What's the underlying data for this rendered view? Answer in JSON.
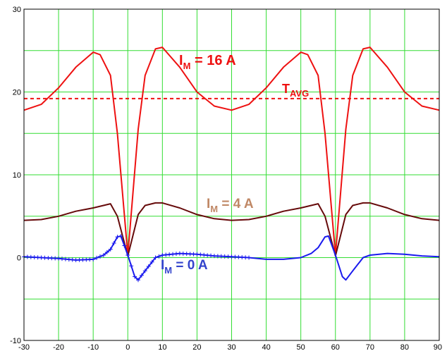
{
  "chart_data": {
    "type": "line",
    "title": "",
    "xlabel": "",
    "ylabel": "",
    "xlim": [
      -30,
      90
    ],
    "ylim": [
      -10,
      30
    ],
    "xticks": [
      "-30",
      "-20",
      "-10",
      "0",
      "10",
      "20",
      "30",
      "40",
      "50",
      "60",
      "70",
      "80",
      "90"
    ],
    "yticks": [
      "30",
      "20",
      "10",
      "0",
      "-10"
    ],
    "grid": true,
    "colors": {
      "grid": "#33dd33",
      "im16": "#ee1111",
      "tavg": "#ee1111",
      "im4": "#660a0a",
      "im0": "#1a1aee",
      "im16_label": "#ee1111",
      "tavg_label": "#ee1111",
      "im4_label": "#c08866",
      "im0_label": "#3344cc"
    },
    "annotations": {
      "im16": {
        "main": "I",
        "sub": "M",
        "rest": " = 16 A"
      },
      "tavg": {
        "main": "T",
        "sub": "AVG",
        "rest": ""
      },
      "im4": {
        "main": "I",
        "sub": "M",
        "rest": " = 4 A"
      },
      "im0": {
        "main": "I",
        "sub": "M",
        "rest": " = 0 A"
      }
    },
    "series": [
      {
        "key": "im16",
        "x": [
          -30,
          -25,
          -20,
          -15,
          -10,
          -8,
          -5,
          -3,
          0,
          3,
          5,
          8,
          10,
          15,
          20,
          25,
          30,
          35,
          40,
          45,
          50,
          52,
          55,
          57,
          60,
          63,
          65,
          68,
          70,
          75,
          80,
          85,
          90
        ],
        "y": [
          17.8,
          18.5,
          20.5,
          23.0,
          24.8,
          24.5,
          22.0,
          15.0,
          0.3,
          15.5,
          22.0,
          25.2,
          25.4,
          23.0,
          20.0,
          18.3,
          17.8,
          18.5,
          20.5,
          23.0,
          24.8,
          24.5,
          22.0,
          15.0,
          0.3,
          15.5,
          22.0,
          25.2,
          25.4,
          23.0,
          20.0,
          18.3,
          17.8
        ]
      },
      {
        "key": "tavg",
        "style": "dashed",
        "x": [
          -30,
          90
        ],
        "y": [
          19.2,
          19.2
        ]
      },
      {
        "key": "im4",
        "x": [
          -30,
          -25,
          -20,
          -15,
          -10,
          -5,
          -3,
          0,
          3,
          5,
          8,
          10,
          15,
          20,
          25,
          30,
          35,
          40,
          45,
          50,
          55,
          57,
          60,
          63,
          65,
          68,
          70,
          75,
          80,
          85,
          90
        ],
        "y": [
          4.5,
          4.6,
          5.0,
          5.6,
          6.0,
          6.5,
          5.0,
          0.2,
          5.2,
          6.3,
          6.6,
          6.6,
          6.0,
          5.2,
          4.7,
          4.5,
          4.6,
          5.0,
          5.6,
          6.0,
          6.5,
          5.0,
          0.2,
          5.2,
          6.3,
          6.6,
          6.6,
          6.0,
          5.2,
          4.7,
          4.5
        ]
      },
      {
        "key": "im0",
        "x": [
          -30,
          -25,
          -20,
          -15,
          -10,
          -7,
          -5,
          -3,
          -2,
          0,
          2,
          3,
          5,
          8,
          10,
          15,
          20,
          25,
          30,
          35,
          40,
          45,
          50,
          53,
          55,
          57,
          58,
          60,
          62,
          63,
          65,
          68,
          70,
          75,
          80,
          85,
          90
        ],
        "y": [
          0.1,
          0.0,
          -0.1,
          -0.3,
          -0.2,
          0.3,
          1.0,
          2.5,
          2.6,
          0.3,
          -2.3,
          -2.7,
          -1.6,
          0.0,
          0.3,
          0.5,
          0.4,
          0.2,
          0.1,
          0.0,
          -0.2,
          -0.2,
          0.0,
          0.5,
          1.2,
          2.5,
          2.6,
          0.3,
          -2.3,
          -2.7,
          -1.6,
          0.0,
          0.3,
          0.5,
          0.4,
          0.2,
          0.1
        ]
      }
    ]
  }
}
